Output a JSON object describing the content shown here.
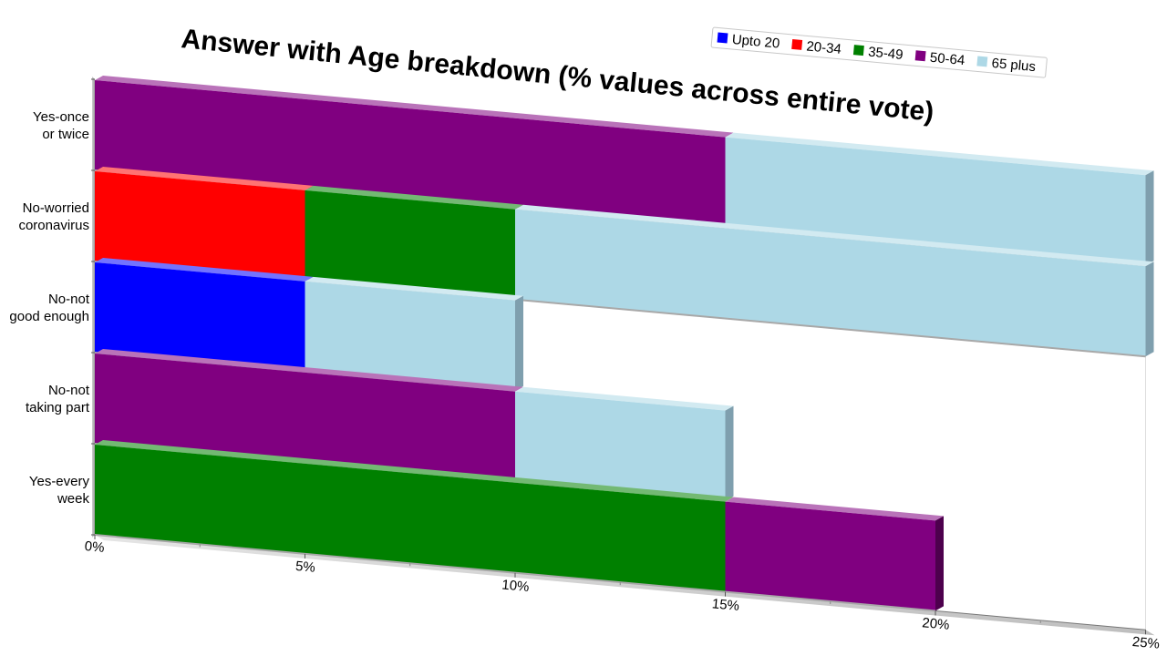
{
  "chart_data": {
    "type": "bar",
    "orientation": "horizontal",
    "stacked": true,
    "title": "Answer with Age breakdown (% values across entire vote)",
    "categories": [
      "Yes-once or twice",
      "No-worried coronavirus",
      "No-not good enough",
      "No-not taking part",
      "Yes-every week"
    ],
    "category_lines": [
      [
        "Yes-once",
        "or twice"
      ],
      [
        "No-worried",
        "coronavirus"
      ],
      [
        "No-not",
        "good enough"
      ],
      [
        "No-not",
        "taking part"
      ],
      [
        "Yes-every",
        "week"
      ]
    ],
    "series": [
      {
        "name": "Upto 20",
        "color": "#0000ff",
        "values": [
          0,
          0,
          5,
          0,
          0
        ]
      },
      {
        "name": "20-34",
        "color": "#ff0000",
        "values": [
          0,
          5,
          0,
          0,
          0
        ]
      },
      {
        "name": "35-49",
        "color": "#008000",
        "values": [
          0,
          5,
          0,
          0,
          15
        ]
      },
      {
        "name": "50-64",
        "color": "#800080",
        "values": [
          15,
          0,
          0,
          10,
          5
        ]
      },
      {
        "name": "65 plus",
        "color": "#add8e6",
        "values": [
          10,
          15,
          5,
          5,
          0
        ]
      }
    ],
    "xlim": [
      0,
      25
    ],
    "x_ticks": [
      "0%",
      "5%",
      "10%",
      "15%",
      "20%",
      "25%"
    ],
    "legend_position": "top-right",
    "grid": false
  }
}
